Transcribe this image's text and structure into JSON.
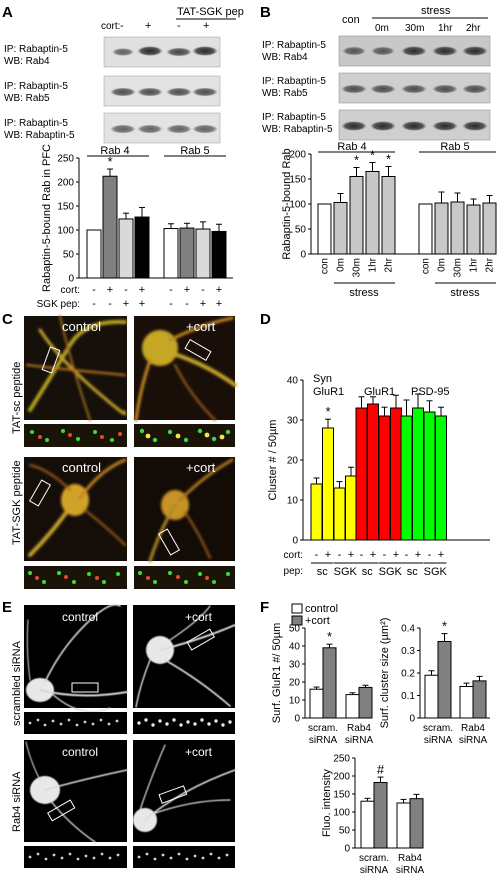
{
  "panelA": {
    "letter": "A",
    "header": "TAT-SGK pep",
    "cort_row_label": "cort:",
    "cort_values": [
      "-",
      "+",
      "-",
      "+"
    ],
    "blots": [
      {
        "line1": "IP: Rabaptin-5",
        "line2": "WB: Rab4"
      },
      {
        "line1": "IP: Rabaptin-5",
        "line2": "WB: Rab5"
      },
      {
        "line1": "IP: Rabaptin-5",
        "line2": "WB: Rabaptin-5"
      }
    ]
  },
  "panelB": {
    "letter": "B",
    "con_label": "con",
    "stress_label": "stress",
    "times": [
      "0m",
      "30m",
      "1hr",
      "2hr"
    ],
    "blots": [
      {
        "line1": "IP: Rabaptin-5",
        "line2": "WB: Rab4"
      },
      {
        "line1": "IP: Rabaptin-5",
        "line2": "WB: Rab5"
      },
      {
        "line1": "IP: Rabaptin-5",
        "line2": "WB: Rabaptin-5"
      }
    ]
  },
  "panelC": {
    "letter": "C",
    "row_labels": [
      "TAT-sc peptide",
      "TAT-SGK peptide"
    ],
    "tile_labels": [
      "control",
      "+cort",
      "control",
      "+cort"
    ]
  },
  "panelE": {
    "letter": "E",
    "row_labels": [
      "scrambled siRNA",
      "Rab4 siRNA"
    ],
    "tile_labels": [
      "control",
      "+cort",
      "control",
      "+cort"
    ]
  },
  "panelF": {
    "letter": "F",
    "legend": [
      {
        "name": "control",
        "color": "#ffffff"
      },
      {
        "name": "+cort",
        "color": "#808080"
      }
    ]
  },
  "chart_data": [
    {
      "id": "A-chart",
      "type": "bar",
      "ylabel": "Rabaptin-5-bound Rab in PFC",
      "ylim": [
        0,
        250
      ],
      "yticks": [
        "0",
        "50",
        "100",
        "150",
        "200",
        "250"
      ],
      "groups": [
        "Rab 4",
        "Rab 5"
      ],
      "row_labels": [
        "cort:",
        "SGK pep:"
      ],
      "cort": [
        "-",
        "+",
        "-",
        "+",
        "-",
        "+",
        "-",
        "+"
      ],
      "sgk": [
        "-",
        "-",
        "+",
        "+",
        "-",
        "-",
        "+",
        "+"
      ],
      "values": [
        100,
        212,
        123,
        127,
        103,
        104,
        102,
        97
      ],
      "errors": [
        0,
        15,
        12,
        20,
        10,
        10,
        15,
        15
      ],
      "colors": [
        "#ffffff",
        "#808080",
        "#d9d9d9",
        "#000000",
        "#ffffff",
        "#808080",
        "#d9d9d9",
        "#000000"
      ],
      "significance": [
        "",
        "*",
        "",
        "",
        "",
        "",
        "",
        ""
      ]
    },
    {
      "id": "B-chart",
      "type": "bar",
      "ylabel": "Rabaptin-5-bound Rab",
      "ylim": [
        0,
        200
      ],
      "yticks": [
        "0",
        "50",
        "100",
        "150",
        "200"
      ],
      "groups": [
        "Rab 4",
        "Rab 5"
      ],
      "categories": [
        "con",
        "0m",
        "30m",
        "1hr",
        "2hr",
        "con",
        "0m",
        "30m",
        "1hr",
        "2hr"
      ],
      "group_xlabel": "stress",
      "values": [
        100,
        103,
        155,
        165,
        155,
        100,
        102,
        104,
        98,
        102
      ],
      "errors": [
        0,
        18,
        18,
        18,
        20,
        0,
        22,
        18,
        12,
        15
      ],
      "colors": [
        "#ffffff",
        "#c8c8c8",
        "#c8c8c8",
        "#c8c8c8",
        "#c8c8c8",
        "#ffffff",
        "#c8c8c8",
        "#c8c8c8",
        "#c8c8c8",
        "#c8c8c8"
      ],
      "significance": [
        "",
        "",
        "*",
        "*",
        "*",
        "",
        "",
        "",
        "",
        ""
      ]
    },
    {
      "id": "D-chart",
      "type": "bar",
      "ylabel": "Cluster # / 50µm",
      "ylim": [
        0,
        40
      ],
      "yticks": [
        "0",
        "10",
        "20",
        "30",
        "40"
      ],
      "groups": [
        "Syn GluR1",
        "GluR1",
        "PSD-95"
      ],
      "row_labels": [
        "cort:",
        "pep:"
      ],
      "cort": [
        "-",
        "+",
        "-",
        "+",
        "-",
        "+",
        "-",
        "+",
        "-",
        "+",
        "-",
        "+"
      ],
      "pep_groups": [
        "sc",
        "SGK",
        "sc",
        "SGK",
        "sc",
        "SGK"
      ],
      "values": [
        14,
        28,
        13,
        16,
        33,
        34,
        31,
        33,
        31,
        33,
        32,
        31
      ],
      "errors": [
        1.5,
        2.2,
        1.6,
        2.2,
        2.8,
        1.8,
        2.2,
        3.2,
        4.0,
        3.5,
        2.8,
        2.2
      ],
      "colors": [
        "#ffff00",
        "#ffff00",
        "#ffff00",
        "#ffff00",
        "#ff0000",
        "#ff0000",
        "#ff0000",
        "#ff0000",
        "#00ff00",
        "#00ff00",
        "#00ff00",
        "#00ff00"
      ],
      "significance": [
        "",
        "*",
        "",
        "",
        "",
        "",
        "",
        "",
        "",
        "",
        "",
        ""
      ]
    },
    {
      "id": "F1",
      "type": "bar",
      "ylabel": "Surf. GluR1 #/ 50µm",
      "ylim": [
        0,
        50
      ],
      "yticks": [
        "0",
        "10",
        "20",
        "30",
        "40",
        "50"
      ],
      "categories": [
        "scram. siRNA",
        "Rab4 siRNA"
      ],
      "series": [
        {
          "name": "control",
          "values": [
            16,
            13
          ],
          "errors": [
            1.2,
            1.0
          ]
        },
        {
          "name": "+cort",
          "values": [
            39,
            17
          ],
          "errors": [
            2.0,
            1.2
          ]
        }
      ],
      "significance": [
        "",
        "*",
        "",
        ""
      ]
    },
    {
      "id": "F2",
      "type": "bar",
      "ylabel": "Surf. cluster size (µm²)",
      "ylim": [
        0,
        0.4
      ],
      "yticks": [
        "0",
        "0.1",
        "0.2",
        "0.3",
        "0.4"
      ],
      "categories": [
        "scram. siRNA",
        "Rab4 siRNA"
      ],
      "series": [
        {
          "name": "control",
          "values": [
            0.19,
            0.14
          ],
          "errors": [
            0.02,
            0.015
          ]
        },
        {
          "name": "+cort",
          "values": [
            0.34,
            0.165
          ],
          "errors": [
            0.035,
            0.02
          ]
        }
      ],
      "significance": [
        "",
        "*",
        "",
        ""
      ]
    },
    {
      "id": "F3",
      "type": "bar",
      "ylabel": "Fluo. intensity",
      "ylim": [
        0,
        250
      ],
      "yticks": [
        "0",
        "50",
        "100",
        "150",
        "200",
        "250"
      ],
      "categories": [
        "scram. siRNA",
        "Rab4 siRNA"
      ],
      "series": [
        {
          "name": "control",
          "values": [
            130,
            125
          ],
          "errors": [
            8,
            10
          ]
        },
        {
          "name": "+cort",
          "values": [
            182,
            137
          ],
          "errors": [
            15,
            12
          ]
        }
      ],
      "significance": [
        "",
        "#",
        "",
        ""
      ]
    }
  ]
}
